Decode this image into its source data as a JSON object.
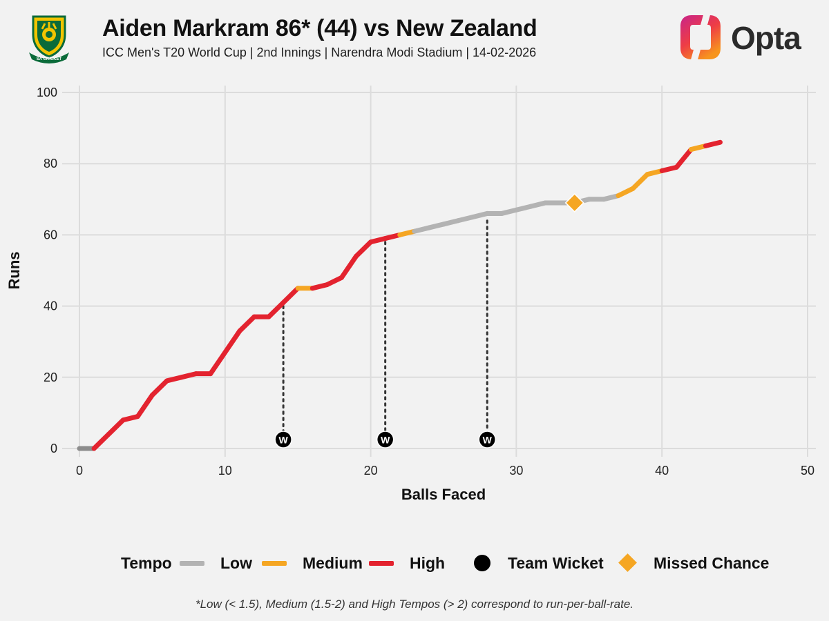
{
  "header": {
    "title": "Aiden Markram 86* (44) vs New Zealand",
    "subtitle": "ICC Men's T20 World Cup | 2nd Innings | Narendra Modi Stadium | 14-02-2026",
    "team_logo_text": "SA CRICKET",
    "brand": "Opta"
  },
  "colors": {
    "low": "#b3b3b3",
    "low_start": "#8c8c8c",
    "medium": "#f5a623",
    "high": "#e3232f",
    "wicket": "#000000",
    "missed_chance": "#f5a623",
    "grid": "#dcdcdc"
  },
  "chart_data": {
    "type": "line",
    "title": "Aiden Markram 86* (44) vs New Zealand",
    "xlabel": "Balls Faced",
    "ylabel": "Runs",
    "xlim": [
      0,
      50
    ],
    "ylim": [
      0,
      100
    ],
    "xticks": [
      0,
      10,
      20,
      30,
      40,
      50
    ],
    "yticks": [
      0,
      20,
      40,
      60,
      80,
      100
    ],
    "grid": true,
    "points": [
      {
        "ball": 0,
        "runs": 0
      },
      {
        "ball": 1,
        "runs": 0
      },
      {
        "ball": 2,
        "runs": 4
      },
      {
        "ball": 3,
        "runs": 8
      },
      {
        "ball": 4,
        "runs": 9
      },
      {
        "ball": 5,
        "runs": 15
      },
      {
        "ball": 6,
        "runs": 19
      },
      {
        "ball": 7,
        "runs": 20
      },
      {
        "ball": 8,
        "runs": 21
      },
      {
        "ball": 9,
        "runs": 21
      },
      {
        "ball": 10,
        "runs": 27
      },
      {
        "ball": 11,
        "runs": 33
      },
      {
        "ball": 12,
        "runs": 37
      },
      {
        "ball": 13,
        "runs": 37
      },
      {
        "ball": 14,
        "runs": 41
      },
      {
        "ball": 15,
        "runs": 45
      },
      {
        "ball": 16,
        "runs": 45
      },
      {
        "ball": 17,
        "runs": 46
      },
      {
        "ball": 18,
        "runs": 48
      },
      {
        "ball": 19,
        "runs": 54
      },
      {
        "ball": 20,
        "runs": 58
      },
      {
        "ball": 21,
        "runs": 59
      },
      {
        "ball": 22,
        "runs": 60
      },
      {
        "ball": 23,
        "runs": 61
      },
      {
        "ball": 24,
        "runs": 62
      },
      {
        "ball": 25,
        "runs": 63
      },
      {
        "ball": 26,
        "runs": 64
      },
      {
        "ball": 27,
        "runs": 65
      },
      {
        "ball": 28,
        "runs": 66
      },
      {
        "ball": 29,
        "runs": 66
      },
      {
        "ball": 30,
        "runs": 67
      },
      {
        "ball": 31,
        "runs": 68
      },
      {
        "ball": 32,
        "runs": 69
      },
      {
        "ball": 33,
        "runs": 69
      },
      {
        "ball": 34,
        "runs": 69
      },
      {
        "ball": 35,
        "runs": 70
      },
      {
        "ball": 36,
        "runs": 70
      },
      {
        "ball": 37,
        "runs": 71
      },
      {
        "ball": 38,
        "runs": 73
      },
      {
        "ball": 39,
        "runs": 77
      },
      {
        "ball": 40,
        "runs": 78
      },
      {
        "ball": 41,
        "runs": 79
      },
      {
        "ball": 42,
        "runs": 84
      },
      {
        "ball": 43,
        "runs": 85
      },
      {
        "ball": 44,
        "runs": 86
      }
    ],
    "segment_tempos": [
      "start",
      "high",
      "high",
      "high",
      "high",
      "high",
      "high",
      "high",
      "high",
      "high",
      "high",
      "high",
      "high",
      "high",
      "high",
      "medium",
      "high",
      "high",
      "high",
      "high",
      "high",
      "high",
      "medium",
      "low",
      "low",
      "low",
      "low",
      "low",
      "low",
      "low",
      "low",
      "low",
      "low",
      "low",
      "low",
      "low",
      "low",
      "medium",
      "medium",
      "medium",
      "high",
      "high",
      "medium",
      "high"
    ],
    "team_wickets": [
      {
        "ball": 14,
        "runs": 40,
        "label": "W"
      },
      {
        "ball": 21,
        "runs": 58,
        "label": "W"
      },
      {
        "ball": 28,
        "runs": 64,
        "label": "W"
      }
    ],
    "missed_chances": [
      {
        "ball": 34,
        "runs": 69
      }
    ],
    "legend": {
      "tempo_label": "Tempo",
      "items": [
        {
          "key": "low",
          "label": "Low",
          "marker": "line"
        },
        {
          "key": "medium",
          "label": "Medium",
          "marker": "line"
        },
        {
          "key": "high",
          "label": "High",
          "marker": "line"
        },
        {
          "key": "wicket",
          "label": "Team Wicket",
          "marker": "circle"
        },
        {
          "key": "missed_chance",
          "label": "Missed Chance",
          "marker": "diamond"
        }
      ]
    },
    "footnote": "*Low (< 1.5), Medium (1.5-2) and High Tempos (> 2) correspond to run-per-ball-rate."
  }
}
